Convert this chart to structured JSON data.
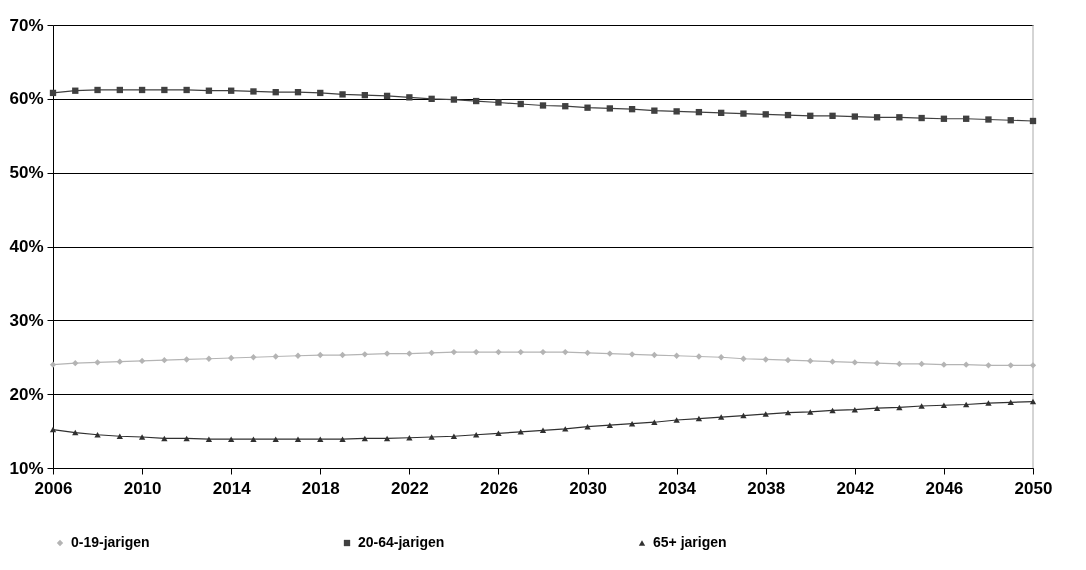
{
  "chart_data": {
    "type": "line",
    "x": [
      2006,
      2007,
      2008,
      2009,
      2010,
      2011,
      2012,
      2013,
      2014,
      2015,
      2016,
      2017,
      2018,
      2019,
      2020,
      2021,
      2022,
      2023,
      2024,
      2025,
      2026,
      2027,
      2028,
      2029,
      2030,
      2031,
      2032,
      2033,
      2034,
      2035,
      2036,
      2037,
      2038,
      2039,
      2040,
      2041,
      2042,
      2043,
      2044,
      2045,
      2046,
      2047,
      2048,
      2049,
      2050
    ],
    "series": [
      {
        "name": "0-19-jarigen",
        "color": "#b4b4b4",
        "marker": "diamond",
        "values": [
          24.0,
          24.2,
          24.3,
          24.4,
          24.5,
          24.6,
          24.7,
          24.8,
          24.9,
          25.0,
          25.1,
          25.2,
          25.3,
          25.3,
          25.4,
          25.5,
          25.5,
          25.6,
          25.7,
          25.7,
          25.7,
          25.7,
          25.7,
          25.7,
          25.6,
          25.5,
          25.4,
          25.3,
          25.2,
          25.1,
          25.0,
          24.8,
          24.7,
          24.6,
          24.5,
          24.4,
          24.3,
          24.2,
          24.1,
          24.1,
          24.0,
          24.0,
          23.9,
          23.9,
          23.9
        ]
      },
      {
        "name": "20-64-jarigen",
        "color": "#404040",
        "marker": "square",
        "values": [
          60.8,
          61.1,
          61.2,
          61.2,
          61.2,
          61.2,
          61.2,
          61.1,
          61.1,
          61.0,
          60.9,
          60.9,
          60.8,
          60.6,
          60.5,
          60.4,
          60.2,
          60.0,
          59.9,
          59.7,
          59.5,
          59.3,
          59.1,
          59.0,
          58.8,
          58.7,
          58.6,
          58.4,
          58.3,
          58.2,
          58.1,
          58.0,
          57.9,
          57.8,
          57.7,
          57.7,
          57.6,
          57.5,
          57.5,
          57.4,
          57.3,
          57.3,
          57.2,
          57.1,
          57.0
        ]
      },
      {
        "name": "65+ jarigen",
        "color": "#303030",
        "marker": "triangle",
        "values": [
          15.2,
          14.8,
          14.5,
          14.3,
          14.2,
          14.0,
          14.0,
          13.9,
          13.9,
          13.9,
          13.9,
          13.9,
          13.9,
          13.9,
          14.0,
          14.0,
          14.1,
          14.2,
          14.3,
          14.5,
          14.7,
          14.9,
          15.1,
          15.3,
          15.6,
          15.8,
          16.0,
          16.2,
          16.5,
          16.7,
          16.9,
          17.1,
          17.3,
          17.5,
          17.6,
          17.8,
          17.9,
          18.1,
          18.2,
          18.4,
          18.5,
          18.6,
          18.8,
          18.9,
          19.0
        ]
      }
    ],
    "xlim": [
      2006,
      2050
    ],
    "xticks": [
      2006,
      2010,
      2014,
      2018,
      2022,
      2026,
      2030,
      2034,
      2038,
      2042,
      2046,
      2050
    ],
    "ylim": [
      10,
      70
    ],
    "yticks": [
      {
        "value": 10,
        "label": "10%"
      },
      {
        "value": 20,
        "label": "20%"
      },
      {
        "value": 30,
        "label": "30%"
      },
      {
        "value": 40,
        "label": "40%"
      },
      {
        "value": 50,
        "label": "50%"
      },
      {
        "value": 60,
        "label": "60%"
      },
      {
        "value": 70,
        "label": "70%"
      }
    ],
    "grid": "y",
    "legend": "bottom",
    "line_style": "solid"
  }
}
